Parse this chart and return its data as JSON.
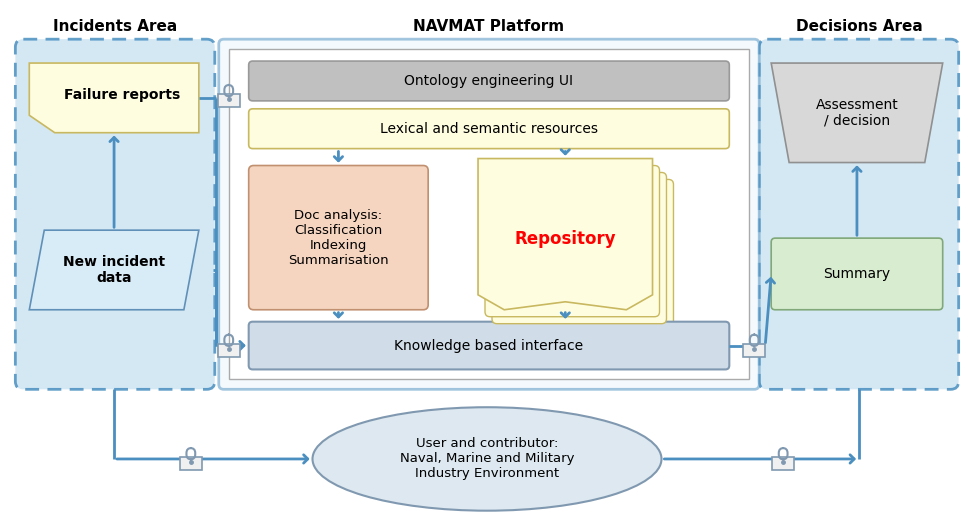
{
  "title_incidents": "Incidents Area",
  "title_navmat": "NAVMAT Platform",
  "title_decisions": "Decisions Area",
  "label_failure": "Failure reports",
  "label_new_incident": "New incident\ndata",
  "label_ontology": "Ontology engineering UI",
  "label_lexical": "Lexical and semantic resources",
  "label_doc": "Doc analysis:\nClassification\nIndexing\nSummarisation",
  "label_repository": "Repository",
  "label_knowledge": "Knowledge based interface",
  "label_assessment": "Assessment\n/ decision",
  "label_summary": "Summary",
  "label_user": "User and contributor:\nNaval, Marine and Military\nIndustry Environment",
  "color_bg": "#ffffff",
  "color_area_fill": "#cde4f3",
  "color_area_edge": "#4a8fc0",
  "color_navmat_fill": "#e8f4fb",
  "color_navmat_inner_fill": "#f0f8ff",
  "color_ontology_fill": "#c0c0c0",
  "color_ontology_edge": "#999999",
  "color_lexical_fill": "#fffde0",
  "color_lexical_edge": "#c8b860",
  "color_doc_fill": "#f5d5c0",
  "color_doc_edge": "#c09070",
  "color_repo_fill": "#fffde0",
  "color_repo_edge": "#c8b860",
  "color_kbi_fill": "#d0dce8",
  "color_kbi_edge": "#8099b0",
  "color_failure_fill": "#fffde0",
  "color_failure_edge": "#c8b860",
  "color_newincident_fill": "#d8ecf8",
  "color_newincident_edge": "#6090b8",
  "color_assessment_fill": "#d8d8d8",
  "color_assessment_edge": "#909090",
  "color_summary_fill": "#d8ecd0",
  "color_summary_edge": "#80a878",
  "color_user_fill": "#dde8f0",
  "color_user_edge": "#8099b0",
  "color_arrow": "#4a8fc0",
  "color_lock_fill": "#f0f0f0",
  "color_lock_edge": "#8099b0"
}
